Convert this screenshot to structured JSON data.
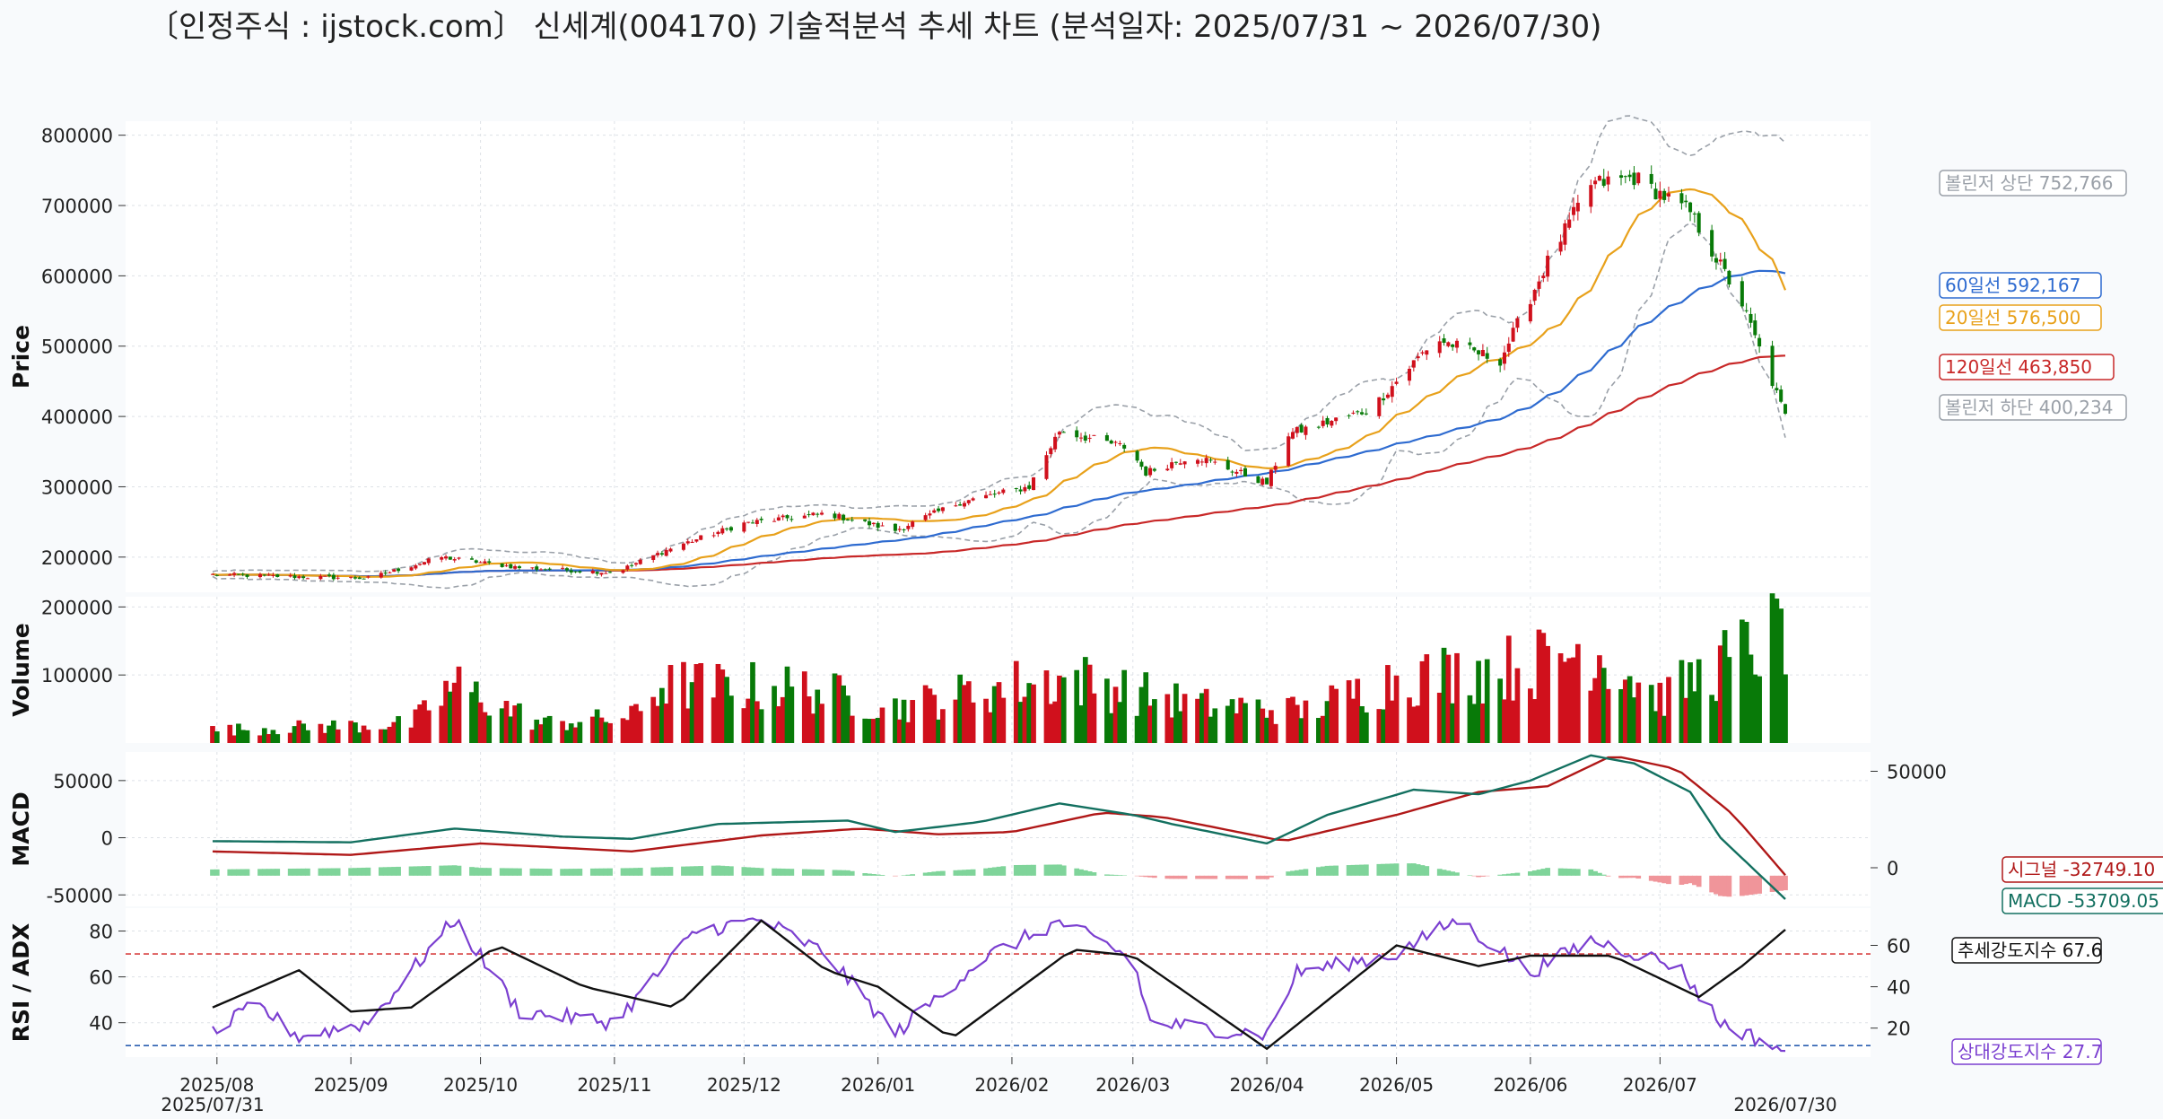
{
  "title": "〔인정주식 : ijstock.com〕 신세계(004170) 기술적분석 추세 차트 (분석일자: 2025/07/31 ~ 2026/07/30)",
  "colors": {
    "up": "#d0101c",
    "down": "#087a08",
    "ma20": "#e8a11b",
    "ma60": "#2e6bd0",
    "ma120": "#c82828",
    "bollinger": "#9aa0a8",
    "macd": "#137060",
    "signal": "#b01818",
    "hist_pos": "#7fd49a",
    "hist_neg": "#f0959a",
    "rsi": "#7b3fd0",
    "adx": "#111111",
    "rsi_upper": "#d84040",
    "rsi_lower": "#2a5fb0"
  },
  "chart_data": [
    {
      "type": "candlestick",
      "name": "price",
      "ylabel": "Price",
      "yticks": [
        200000,
        300000,
        400000,
        500000,
        600000,
        700000,
        800000
      ],
      "ylim": [
        150000,
        820000
      ],
      "grid": true,
      "start_date": "2025-07-31",
      "end_date": "2026-07-30",
      "anchors": [
        {
          "d": "2025-07-31",
          "c": 175000
        },
        {
          "d": "2025-08-20",
          "c": 172000
        },
        {
          "d": "2025-09-05",
          "c": 170000
        },
        {
          "d": "2025-09-22",
          "c": 200000
        },
        {
          "d": "2025-10-10",
          "c": 185000
        },
        {
          "d": "2025-11-01",
          "c": 178000
        },
        {
          "d": "2025-11-15",
          "c": 215000
        },
        {
          "d": "2025-12-01",
          "c": 248000
        },
        {
          "d": "2025-12-20",
          "c": 262000
        },
        {
          "d": "2026-01-05",
          "c": 238000
        },
        {
          "d": "2026-01-20",
          "c": 278000
        },
        {
          "d": "2026-02-05",
          "c": 300000
        },
        {
          "d": "2026-02-12",
          "c": 380000
        },
        {
          "d": "2026-02-28",
          "c": 355000
        },
        {
          "d": "2026-03-04",
          "c": 320000
        },
        {
          "d": "2026-03-15",
          "c": 345000
        },
        {
          "d": "2026-04-01",
          "c": 305000
        },
        {
          "d": "2026-04-06",
          "c": 375000
        },
        {
          "d": "2026-04-25",
          "c": 410000
        },
        {
          "d": "2026-05-10",
          "c": 510000
        },
        {
          "d": "2026-05-25",
          "c": 480000
        },
        {
          "d": "2026-06-05",
          "c": 620000
        },
        {
          "d": "2026-06-15",
          "c": 730000
        },
        {
          "d": "2026-06-25",
          "c": 740000
        },
        {
          "d": "2026-07-08",
          "c": 690000
        },
        {
          "d": "2026-07-20",
          "c": 560000
        },
        {
          "d": "2026-07-30",
          "c": 400234
        }
      ],
      "labels": [
        {
          "text": "볼린저 상단 752,766",
          "value": 752766,
          "color": "#9aa0a8"
        },
        {
          "text": "60일선 592,167",
          "value": 592167,
          "color": "#2e6bd0"
        },
        {
          "text": "20일선 576,500",
          "value": 576500,
          "color": "#e8a11b"
        },
        {
          "text": "120일선 463,850",
          "value": 463850,
          "color": "#c82828"
        },
        {
          "text": "볼린저 하단 400,234",
          "value": 400234,
          "color": "#9aa0a8"
        }
      ]
    },
    {
      "type": "bar",
      "name": "volume",
      "ylabel": "Volume",
      "yticks": [
        100000,
        200000
      ],
      "ylim": [
        0,
        215000
      ],
      "anchors": [
        {
          "d": "2025-07-31",
          "v": 20000
        },
        {
          "d": "2025-09-15",
          "v": 30000
        },
        {
          "d": "2025-09-25",
          "v": 90000
        },
        {
          "d": "2025-10-15",
          "v": 30000
        },
        {
          "d": "2025-11-05",
          "v": 40000
        },
        {
          "d": "2025-11-12",
          "v": 90000
        },
        {
          "d": "2025-12-15",
          "v": 85000
        },
        {
          "d": "2026-01-05",
          "v": 55000
        },
        {
          "d": "2026-02-01",
          "v": 90000
        },
        {
          "d": "2026-02-15",
          "v": 100000
        },
        {
          "d": "2026-03-15",
          "v": 60000
        },
        {
          "d": "2026-04-10",
          "v": 50000
        },
        {
          "d": "2026-05-01",
          "v": 100000
        },
        {
          "d": "2026-06-01",
          "v": 120000
        },
        {
          "d": "2026-06-15",
          "v": 150000
        },
        {
          "d": "2026-07-01",
          "v": 70000
        },
        {
          "d": "2026-07-30",
          "v": 175000
        }
      ]
    },
    {
      "type": "line",
      "name": "macd",
      "ylabel": "MACD",
      "yticks": [
        -50000,
        0,
        50000
      ],
      "ylim": [
        -60000,
        75000
      ],
      "right_yticks": [
        0,
        50000
      ],
      "series": [
        {
          "name": "MACD",
          "color": "#137060",
          "anchors": [
            {
              "d": "2025-07-31",
              "v": -3000
            },
            {
              "d": "2025-09-01",
              "v": -4000
            },
            {
              "d": "2025-09-25",
              "v": 8000
            },
            {
              "d": "2025-10-20",
              "v": 1000
            },
            {
              "d": "2025-11-05",
              "v": -1000
            },
            {
              "d": "2025-11-25",
              "v": 12000
            },
            {
              "d": "2025-12-25",
              "v": 15000
            },
            {
              "d": "2026-01-05",
              "v": 5000
            },
            {
              "d": "2026-01-25",
              "v": 14000
            },
            {
              "d": "2026-02-12",
              "v": 30000
            },
            {
              "d": "2026-03-01",
              "v": 20000
            },
            {
              "d": "2026-03-10",
              "v": 12000
            },
            {
              "d": "2026-04-01",
              "v": -5000
            },
            {
              "d": "2026-04-15",
              "v": 20000
            },
            {
              "d": "2026-05-05",
              "v": 42000
            },
            {
              "d": "2026-05-20",
              "v": 38000
            },
            {
              "d": "2026-06-01",
              "v": 50000
            },
            {
              "d": "2026-06-15",
              "v": 72000
            },
            {
              "d": "2026-06-25",
              "v": 65000
            },
            {
              "d": "2026-07-08",
              "v": 40000
            },
            {
              "d": "2026-07-15",
              "v": 0
            },
            {
              "d": "2026-07-30",
              "v": -53709.05
            }
          ]
        },
        {
          "name": "Signal",
          "color": "#b01818",
          "anchors": [
            {
              "d": "2025-07-31",
              "v": -12000
            },
            {
              "d": "2025-09-01",
              "v": -15000
            },
            {
              "d": "2025-10-01",
              "v": -5000
            },
            {
              "d": "2025-11-05",
              "v": -12000
            },
            {
              "d": "2025-12-05",
              "v": 2000
            },
            {
              "d": "2025-12-28",
              "v": 8000
            },
            {
              "d": "2026-01-15",
              "v": 3000
            },
            {
              "d": "2026-02-01",
              "v": 5000
            },
            {
              "d": "2026-02-22",
              "v": 22000
            },
            {
              "d": "2026-03-08",
              "v": 18000
            },
            {
              "d": "2026-04-05",
              "v": -3000
            },
            {
              "d": "2026-05-01",
              "v": 20000
            },
            {
              "d": "2026-05-20",
              "v": 40000
            },
            {
              "d": "2026-06-05",
              "v": 45000
            },
            {
              "d": "2026-06-20",
              "v": 72000
            },
            {
              "d": "2026-07-05",
              "v": 60000
            },
            {
              "d": "2026-07-18",
              "v": 20000
            },
            {
              "d": "2026-07-30",
              "v": -32749.1
            }
          ]
        }
      ],
      "labels": [
        {
          "text": "시그널 -32749.10",
          "color": "#b01818"
        },
        {
          "text": "MACD -53709.05",
          "color": "#137060"
        }
      ]
    },
    {
      "type": "line",
      "name": "rsi_adx",
      "ylabel": "RSI / ADX",
      "yticks": [
        40,
        60,
        80
      ],
      "ylim": [
        25,
        90
      ],
      "right_yticks": [
        20,
        40,
        60
      ],
      "right_ylim": [
        6,
        78
      ],
      "rsi_upper_line": 70,
      "rsi_lower_line": 30,
      "series": [
        {
          "name": "RSI",
          "color": "#7b3fd0",
          "anchors": [
            {
              "d": "2025-07-31",
              "v": 35
            },
            {
              "d": "2025-08-10",
              "v": 48
            },
            {
              "d": "2025-08-20",
              "v": 34
            },
            {
              "d": "2025-09-05",
              "v": 40
            },
            {
              "d": "2025-09-25",
              "v": 85
            },
            {
              "d": "2025-10-10",
              "v": 45
            },
            {
              "d": "2025-11-01",
              "v": 40
            },
            {
              "d": "2025-11-20",
              "v": 80
            },
            {
              "d": "2025-12-05",
              "v": 85
            },
            {
              "d": "2025-12-20",
              "v": 70
            },
            {
              "d": "2026-01-05",
              "v": 35
            },
            {
              "d": "2026-01-25",
              "v": 68
            },
            {
              "d": "2026-02-12",
              "v": 84
            },
            {
              "d": "2026-03-01",
              "v": 68
            },
            {
              "d": "2026-03-05",
              "v": 40
            },
            {
              "d": "2026-04-01",
              "v": 35
            },
            {
              "d": "2026-04-08",
              "v": 62
            },
            {
              "d": "2026-05-01",
              "v": 70
            },
            {
              "d": "2026-05-15",
              "v": 85
            },
            {
              "d": "2026-06-01",
              "v": 62
            },
            {
              "d": "2026-06-15",
              "v": 76
            },
            {
              "d": "2026-07-05",
              "v": 65
            },
            {
              "d": "2026-07-15",
              "v": 40
            },
            {
              "d": "2026-07-30",
              "v": 27.7
            }
          ]
        },
        {
          "name": "ADX",
          "color": "#111111",
          "axis": "right",
          "anchors": [
            {
              "d": "2025-07-31",
              "v": 30
            },
            {
              "d": "2025-08-20",
              "v": 48
            },
            {
              "d": "2025-09-01",
              "v": 28
            },
            {
              "d": "2025-09-15",
              "v": 30
            },
            {
              "d": "2025-10-05",
              "v": 60
            },
            {
              "d": "2025-10-25",
              "v": 40
            },
            {
              "d": "2025-11-15",
              "v": 30
            },
            {
              "d": "2025-12-05",
              "v": 72
            },
            {
              "d": "2025-12-20",
              "v": 48
            },
            {
              "d": "2026-01-01",
              "v": 40
            },
            {
              "d": "2026-01-18",
              "v": 15
            },
            {
              "d": "2026-02-15",
              "v": 58
            },
            {
              "d": "2026-03-01",
              "v": 55
            },
            {
              "d": "2026-04-01",
              "v": 10
            },
            {
              "d": "2026-05-01",
              "v": 60
            },
            {
              "d": "2026-05-20",
              "v": 50
            },
            {
              "d": "2026-06-01",
              "v": 55
            },
            {
              "d": "2026-06-20",
              "v": 55
            },
            {
              "d": "2026-07-10",
              "v": 35
            },
            {
              "d": "2026-07-20",
              "v": 50
            },
            {
              "d": "2026-07-30",
              "v": 67.6
            }
          ]
        }
      ],
      "labels": [
        {
          "text": "추세강도지수 67.6",
          "color": "#111111"
        },
        {
          "text": "상대강도지수 27.7",
          "color": "#7b3fd0"
        }
      ]
    }
  ],
  "xaxis": {
    "ticks": [
      {
        "label": "2025/08",
        "d": "2025-08-01"
      },
      {
        "label": "2025/09",
        "d": "2025-09-01"
      },
      {
        "label": "2025/10",
        "d": "2025-10-01"
      },
      {
        "label": "2025/11",
        "d": "2025-11-01"
      },
      {
        "label": "2025/12",
        "d": "2025-12-01"
      },
      {
        "label": "2026/01",
        "d": "2026-01-01"
      },
      {
        "label": "2026/02",
        "d": "2026-02-01"
      },
      {
        "label": "2026/03",
        "d": "2026-03-01"
      },
      {
        "label": "2026/04",
        "d": "2026-04-01"
      },
      {
        "label": "2026/05",
        "d": "2026-05-01"
      },
      {
        "label": "2026/06",
        "d": "2026-06-01"
      },
      {
        "label": "2026/07",
        "d": "2026-07-01"
      }
    ],
    "start_label": "2025/07/31",
    "end_label": "2026/07/30"
  }
}
